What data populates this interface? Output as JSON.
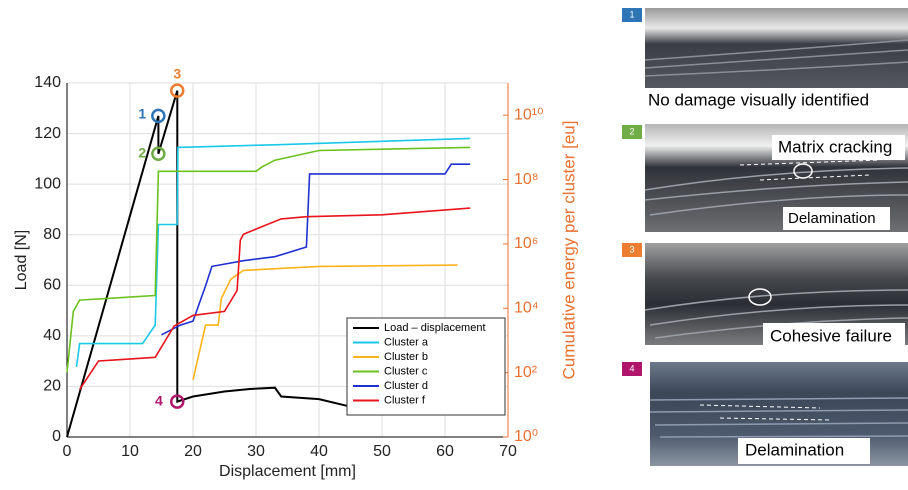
{
  "chart_data": {
    "type": "line",
    "xlabel": "Displacement [mm]",
    "ylabel": "Load [N]",
    "y2label": "Cumulative energy per cluster [eu]",
    "xlim": [
      0,
      70
    ],
    "xticks": [
      0,
      10,
      20,
      30,
      40,
      50,
      60,
      70
    ],
    "ylim": [
      0,
      140
    ],
    "yticks": [
      0,
      20,
      40,
      60,
      80,
      100,
      120,
      140
    ],
    "y2lim": [
      1,
      100000000000
    ],
    "y2scale": "log",
    "y2ticks": [
      {
        "value": 1,
        "label": "10⁰"
      },
      {
        "value": 100,
        "label": "10²"
      },
      {
        "value": 10000,
        "label": "10⁴"
      },
      {
        "value": 1000000,
        "label": "10⁶"
      },
      {
        "value": 100000000,
        "label": "10⁸"
      },
      {
        "value": 10000000000,
        "label": "10¹⁰"
      }
    ],
    "y2color": "#e97132",
    "grid": true,
    "legend": "lower right",
    "series": [
      {
        "name": "Load – displacement",
        "color": "#000000",
        "x": [
          0,
          14.5,
          14.5,
          17.5,
          17.5,
          20,
          25,
          29,
          33,
          34,
          40,
          45
        ],
        "values": [
          0,
          127,
          112,
          137,
          14,
          16,
          18,
          19,
          19.5,
          16,
          15,
          12
        ]
      },
      {
        "name": "Cluster a",
        "color": "#19c8e8",
        "axis": "y2",
        "x": [
          1.5,
          2,
          12,
          14,
          14.5,
          17.5,
          17.6,
          33,
          64
        ],
        "values": [
          150,
          800,
          800,
          3000,
          4000000,
          4000000,
          1000000000,
          1200000000,
          1900000000
        ]
      },
      {
        "name": "Cluster b",
        "color": "#ffb31a",
        "axis": "y2",
        "x": [
          20,
          22,
          24,
          24.5,
          26,
          28,
          40,
          62
        ],
        "values": [
          60,
          3000,
          3000,
          20000,
          80000,
          150000,
          200000,
          220000
        ]
      },
      {
        "name": "Cluster c",
        "color": "#6cc11f",
        "axis": "y2",
        "x": [
          0,
          1,
          2,
          14,
          14.5,
          30,
          31,
          33,
          40,
          64
        ],
        "values": [
          100,
          8000,
          18000,
          25000,
          180000000,
          180000000,
          250000000,
          400000000,
          800000000,
          1000000000
        ]
      },
      {
        "name": "Cluster d",
        "color": "#1f2fd0",
        "axis": "y2",
        "x": [
          15,
          18,
          20,
          22,
          23,
          28,
          33,
          38,
          38.5,
          60,
          61,
          64
        ],
        "values": [
          1500,
          3000,
          4000,
          50000,
          200000,
          300000,
          400000,
          800000,
          150000000,
          150000000,
          300000000,
          300000000
        ]
      },
      {
        "name": "Cluster f",
        "color": "#e8141c",
        "axis": "y2",
        "x": [
          2,
          5,
          8,
          14,
          17,
          20,
          25,
          27,
          27.5,
          28,
          34,
          38,
          50,
          64
        ],
        "values": [
          30,
          230,
          250,
          300,
          2800,
          6000,
          8000,
          36000,
          1300000,
          2000000,
          6000000,
          7000000,
          8000000,
          13000000
        ]
      }
    ],
    "annotations": [
      {
        "text": "1",
        "x": 14.5,
        "y": 127,
        "color": "#2e75b6"
      },
      {
        "text": "2",
        "x": 14.5,
        "y": 112,
        "color": "#70ad47"
      },
      {
        "text": "3",
        "x": 17.5,
        "y": 137,
        "color": "#ed7d31"
      },
      {
        "text": "4",
        "x": 17.5,
        "y": 14,
        "color": "#b0156c"
      }
    ]
  },
  "panels": [
    {
      "badge": "1",
      "captions": [
        "No damage visually identified"
      ]
    },
    {
      "badge": "2",
      "captions": [
        "Matrix cracking",
        "Delamination"
      ]
    },
    {
      "badge": "3",
      "captions": [
        "Cohesive failure"
      ]
    },
    {
      "badge": "4",
      "captions": [
        "Delamination"
      ]
    }
  ]
}
